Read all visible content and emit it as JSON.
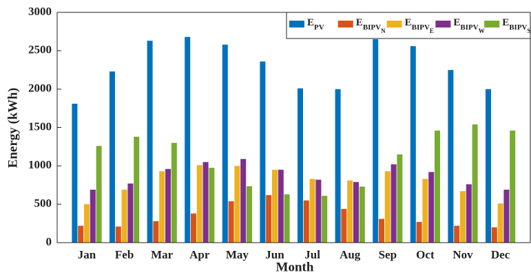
{
  "chart_data": {
    "type": "bar",
    "xlabel": "Month",
    "ylabel": "Energy (kWh)",
    "categories": [
      "Jan",
      "Feb",
      "Mar",
      "Apr",
      "May",
      "Jun",
      "Jul",
      "Aug",
      "Sep",
      "Oct",
      "Nov",
      "Dec"
    ],
    "series": [
      {
        "name": "E_PV",
        "color": "#0072BD",
        "values": [
          1810,
          2230,
          2630,
          2680,
          2580,
          2360,
          2010,
          2000,
          2650,
          2560,
          2250,
          2000
        ]
      },
      {
        "name": "E_BIPV_N",
        "color": "#D95319",
        "values": [
          220,
          210,
          280,
          380,
          540,
          620,
          550,
          440,
          310,
          270,
          220,
          200
        ]
      },
      {
        "name": "E_BIPV_E",
        "color": "#EDB120",
        "values": [
          500,
          690,
          930,
          1010,
          1000,
          950,
          830,
          810,
          930,
          830,
          670,
          510
        ]
      },
      {
        "name": "E_BIPV_W",
        "color": "#7E2F8E",
        "values": [
          690,
          770,
          960,
          1050,
          1090,
          950,
          820,
          790,
          1020,
          920,
          760,
          690
        ]
      },
      {
        "name": "E_BIPV_S",
        "color": "#77AC30",
        "values": [
          1260,
          1380,
          1300,
          975,
          735,
          630,
          610,
          730,
          1150,
          1460,
          1540,
          1460
        ]
      }
    ],
    "ylim": [
      0,
      3000
    ],
    "yticks": [
      0,
      500,
      1000,
      1500,
      2000,
      2500,
      3000
    ],
    "legend": "top-right"
  }
}
